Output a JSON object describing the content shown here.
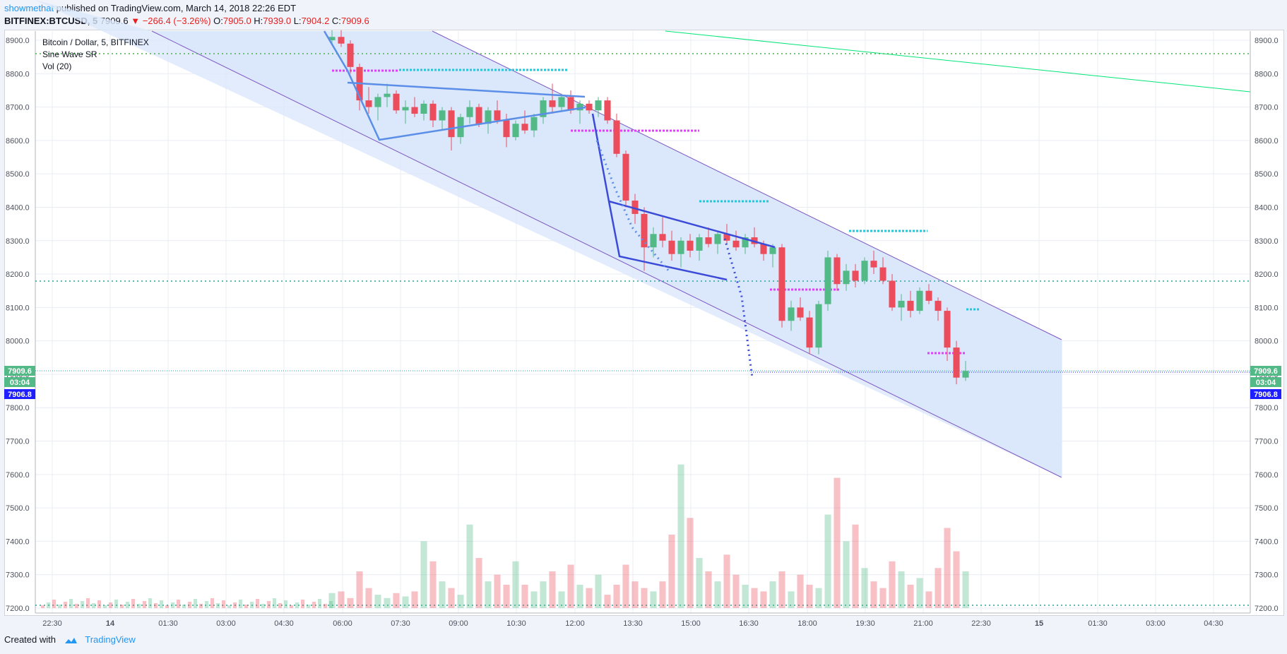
{
  "header": {
    "author": "showmethat",
    "published": "published on TradingView.com, March 14, 2018 22:26 EDT",
    "symbol": "BITFINEX:BTCUSD, 5",
    "last": "7909.6",
    "change": "−266.4 (−3.26%)",
    "o_label": "O:",
    "o_value": "7905.0",
    "h_label": "H:",
    "h_value": "7939.0",
    "l_label": "L:",
    "l_value": "7904.2",
    "c_label": "C:",
    "c_value": "7909.6"
  },
  "legend": {
    "title": "Bitcoin / Dollar, 5, BITFINEX",
    "indicator1": "Sine Wave SR",
    "indicator2": "Vol (20)"
  },
  "footer": {
    "created_with": "Created with",
    "brand": "TradingView"
  },
  "colors": {
    "up": "#53b987",
    "down": "#eb4d5c",
    "channel_fill": "#dbe7fb",
    "channel_line": "#7e57c2",
    "pattern_light": "#5b8ee6",
    "pattern_dark": "#3b4bd8",
    "magenta": "#e040fb",
    "cyan": "#26c6da",
    "green_line": "#00e676",
    "price_badge": "#53b987",
    "blue_badge": "#1e1eff"
  },
  "chart_data": {
    "type": "candlestick",
    "y_axis": {
      "ticks": [
        "7200.0",
        "7300.0",
        "7400.0",
        "7500.0",
        "7600.0",
        "7700.0",
        "7800.0",
        "7900.0",
        "8000.0",
        "8100.0",
        "8200.0",
        "8300.0",
        "8400.0",
        "8500.0",
        "8600.0",
        "8700.0",
        "8800.0",
        "8900.0"
      ],
      "range": [
        7180,
        8930
      ]
    },
    "x_axis": {
      "ticks": [
        "22:30",
        "14",
        "01:30",
        "03:00",
        "04:30",
        "06:00",
        "07:30",
        "09:00",
        "10:30",
        "12:00",
        "13:30",
        "15:00",
        "16:30",
        "18:00",
        "19:30",
        "21:00",
        "22:30",
        "15",
        "01:30",
        "03:00",
        "04:30"
      ]
    },
    "price_labels": {
      "last": "7909.6",
      "countdown": "03:04",
      "blue": "7906.8"
    },
    "candles": [
      [
        8900,
        8930,
        8890,
        8910
      ],
      [
        8910,
        8930,
        8880,
        8890
      ],
      [
        8890,
        8900,
        8800,
        8820
      ],
      [
        8820,
        8830,
        8690,
        8720
      ],
      [
        8720,
        8760,
        8680,
        8700
      ],
      [
        8700,
        8740,
        8660,
        8730
      ],
      [
        8730,
        8770,
        8700,
        8740
      ],
      [
        8740,
        8750,
        8680,
        8690
      ],
      [
        8690,
        8720,
        8650,
        8700
      ],
      [
        8700,
        8730,
        8670,
        8680
      ],
      [
        8680,
        8720,
        8660,
        8710
      ],
      [
        8710,
        8720,
        8640,
        8660
      ],
      [
        8660,
        8700,
        8630,
        8690
      ],
      [
        8690,
        8700,
        8570,
        8610
      ],
      [
        8610,
        8680,
        8590,
        8670
      ],
      [
        8670,
        8720,
        8650,
        8700
      ],
      [
        8700,
        8710,
        8640,
        8650
      ],
      [
        8650,
        8700,
        8620,
        8690
      ],
      [
        8690,
        8720,
        8650,
        8660
      ],
      [
        8660,
        8680,
        8580,
        8610
      ],
      [
        8610,
        8660,
        8600,
        8650
      ],
      [
        8650,
        8690,
        8620,
        8630
      ],
      [
        8630,
        8680,
        8610,
        8670
      ],
      [
        8670,
        8730,
        8650,
        8720
      ],
      [
        8720,
        8770,
        8680,
        8700
      ],
      [
        8700,
        8740,
        8690,
        8730
      ],
      [
        8730,
        8750,
        8680,
        8690
      ],
      [
        8690,
        8720,
        8650,
        8710
      ],
      [
        8710,
        8720,
        8680,
        8690
      ],
      [
        8690,
        8730,
        8670,
        8720
      ],
      [
        8720,
        8730,
        8650,
        8660
      ],
      [
        8660,
        8680,
        8550,
        8560
      ],
      [
        8560,
        8570,
        8400,
        8420
      ],
      [
        8420,
        8440,
        8350,
        8380
      ],
      [
        8380,
        8400,
        8210,
        8280
      ],
      [
        8280,
        8340,
        8250,
        8320
      ],
      [
        8320,
        8370,
        8280,
        8300
      ],
      [
        8300,
        8330,
        8240,
        8260
      ],
      [
        8260,
        8310,
        8220,
        8300
      ],
      [
        8300,
        8320,
        8250,
        8270
      ],
      [
        8270,
        8320,
        8240,
        8310
      ],
      [
        8310,
        8340,
        8280,
        8290
      ],
      [
        8290,
        8330,
        8260,
        8320
      ],
      [
        8320,
        8350,
        8290,
        8300
      ],
      [
        8300,
        8330,
        8270,
        8280
      ],
      [
        8280,
        8320,
        8260,
        8310
      ],
      [
        8310,
        8340,
        8280,
        8290
      ],
      [
        8290,
        8300,
        8240,
        8260
      ],
      [
        8260,
        8290,
        8220,
        8280
      ],
      [
        8280,
        8290,
        8040,
        8060
      ],
      [
        8060,
        8120,
        8030,
        8100
      ],
      [
        8100,
        8130,
        8060,
        8070
      ],
      [
        8070,
        8090,
        7960,
        7980
      ],
      [
        7980,
        8120,
        7960,
        8110
      ],
      [
        8110,
        8270,
        8090,
        8250
      ],
      [
        8250,
        8260,
        8150,
        8170
      ],
      [
        8170,
        8230,
        8150,
        8210
      ],
      [
        8210,
        8230,
        8160,
        8180
      ],
      [
        8180,
        8250,
        8170,
        8240
      ],
      [
        8240,
        8270,
        8200,
        8220
      ],
      [
        8220,
        8250,
        8170,
        8180
      ],
      [
        8180,
        8200,
        8090,
        8100
      ],
      [
        8100,
        8140,
        8060,
        8120
      ],
      [
        8120,
        8150,
        8070,
        8090
      ],
      [
        8090,
        8160,
        8080,
        8150
      ],
      [
        8150,
        8170,
        8110,
        8120
      ],
      [
        8120,
        8130,
        8060,
        8090
      ],
      [
        8090,
        8100,
        7940,
        7980
      ],
      [
        7980,
        8000,
        7870,
        7890
      ],
      [
        7890,
        7940,
        7880,
        7910
      ]
    ],
    "volumes": [
      7225,
      7230,
      7210,
      7290,
      7240,
      7220,
      7210,
      7225,
      7215,
      7230,
      7380,
      7320,
      7260,
      7240,
      7220,
      7430,
      7330,
      7260,
      7280,
      7250,
      7320,
      7250,
      7230,
      7260,
      7290,
      7230,
      7310,
      7250,
      7240,
      7280,
      7220,
      7250,
      7310,
      7260,
      7240,
      7230,
      7260,
      7400,
      7610,
      7450,
      7330,
      7290,
      7260,
      7340,
      7280,
      7250,
      7240,
      7230,
      7260,
      7290,
      7230,
      7280,
      7250,
      7240,
      7460,
      7570,
      7380,
      7430,
      7300,
      7260,
      7240,
      7320,
      7290,
      7250,
      7270,
      7230,
      7300,
      7420,
      7350,
      7290
    ]
  }
}
